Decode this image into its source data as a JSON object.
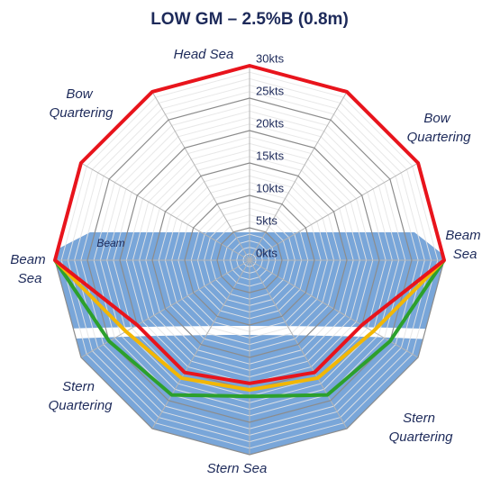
{
  "chart_data": {
    "type": "radar",
    "title": "LOW GM – 2.5%B (0.8m)",
    "categories": [
      "Head Sea",
      null,
      "Bow Quartering",
      "Beam Sea",
      "Stern Quartering",
      null,
      "Stern Sea",
      null,
      "Stern Quartering",
      "Beam Sea",
      "Bow Quartering",
      null
    ],
    "annotations": [
      "Beam"
    ],
    "rlim": [
      0,
      30
    ],
    "rticks": [
      {
        "value": 0,
        "label": "0kts"
      },
      {
        "value": 5,
        "label": "5kts"
      },
      {
        "value": 10,
        "label": "10kts"
      },
      {
        "value": 15,
        "label": "15kts"
      },
      {
        "value": 20,
        "label": "20kts"
      },
      {
        "value": 25,
        "label": "25kts"
      },
      {
        "value": 30,
        "label": "30kts"
      }
    ],
    "series": [
      {
        "color": "#2ca02c",
        "values": [
          null,
          null,
          null,
          30,
          25,
          24,
          21,
          24,
          25,
          30,
          null,
          null
        ]
      },
      {
        "color": "#f2b705",
        "values": [
          null,
          null,
          null,
          30,
          22,
          21,
          20,
          21,
          22,
          30,
          null,
          null
        ]
      },
      {
        "color": "#e8141c",
        "values": [
          30,
          30,
          30,
          30,
          20,
          20,
          19,
          20,
          20,
          30,
          30,
          30
        ]
      }
    ]
  }
}
